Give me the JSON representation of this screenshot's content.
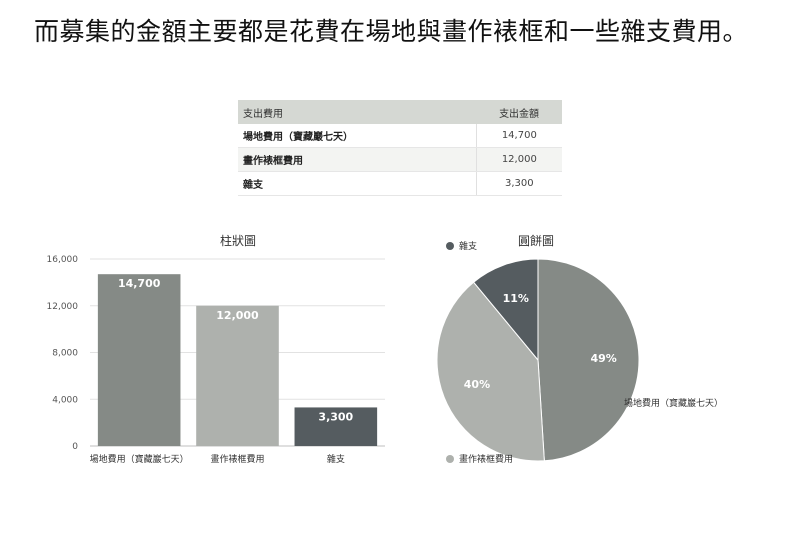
{
  "heading": "而募集的金額主要都是花費在場地與畫作裱框和一些雜支費用。",
  "table": {
    "headers": [
      "支出費用",
      "支出金額"
    ],
    "rows": [
      [
        "場地費用（寶藏巖七天）",
        "14,700"
      ],
      [
        "畫作裱框費用",
        "12,000"
      ],
      [
        "雜支",
        "3,300"
      ]
    ]
  },
  "chart_data": [
    {
      "type": "bar",
      "title": "柱狀圖",
      "categories": [
        "場地費用（寶藏巖七天）",
        "畫作裱框費用",
        "雜支"
      ],
      "values": [
        14700,
        12000,
        3300
      ],
      "value_labels": [
        "14,700",
        "12,000",
        "3,300"
      ],
      "ylim": [
        0,
        16000
      ],
      "yticks": [
        0,
        4000,
        8000,
        12000,
        16000
      ],
      "ytick_labels": [
        "0",
        "4,000",
        "8,000",
        "12,000",
        "16,000"
      ],
      "colors": [
        "#858a86",
        "#aeb1ad",
        "#555c60"
      ],
      "grid": true
    },
    {
      "type": "pie",
      "title": "圓餅圖",
      "labels": [
        "場地費用（寶藏巖七天）",
        "畫作裱框費用",
        "雜支"
      ],
      "values": [
        49,
        40,
        11
      ],
      "value_labels": [
        "49%",
        "40%",
        "11%"
      ],
      "colors": [
        "#858a86",
        "#aeb1ad",
        "#555c60"
      ]
    }
  ]
}
